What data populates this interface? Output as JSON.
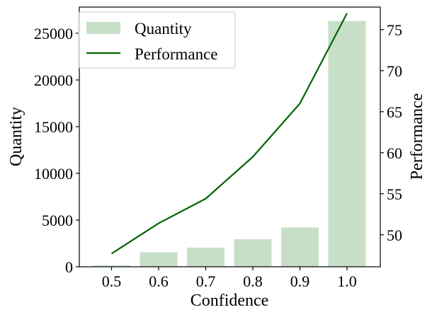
{
  "chart_data": {
    "type": "bar",
    "categories": [
      "0.5",
      "0.6",
      "0.7",
      "0.8",
      "0.9",
      "1.0"
    ],
    "xlabel": "Confidence",
    "series": [
      {
        "name": "Quantity",
        "type": "bar",
        "axis": "left",
        "color": "#c7dfc7",
        "values": [
          150,
          1550,
          2050,
          2950,
          4200,
          26300
        ]
      },
      {
        "name": "Performance",
        "type": "line",
        "axis": "right",
        "color": "#006400",
        "values": [
          47.7,
          51.4,
          54.4,
          59.5,
          66.0,
          77.0
        ]
      }
    ],
    "y_left": {
      "label": "Quantity",
      "ylim": [
        0,
        27800
      ],
      "ticks": [
        "0",
        "5000",
        "10000",
        "15000",
        "20000",
        "25000"
      ]
    },
    "y_right": {
      "label": "Performance",
      "ylim": [
        46.1,
        77.75
      ],
      "ticks": [
        "50",
        "55",
        "60",
        "65",
        "70",
        "75"
      ]
    },
    "legend_position": "top-left",
    "grid": false
  }
}
